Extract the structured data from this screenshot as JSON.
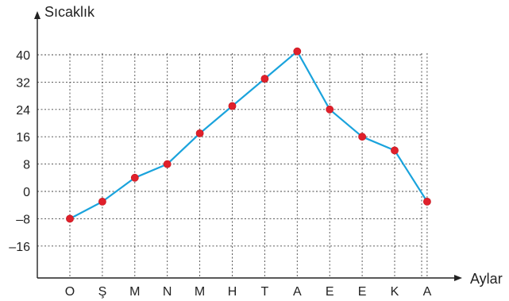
{
  "chart_data": {
    "type": "line",
    "title": "",
    "ylabel": "Sıcaklık",
    "xlabel": "Aylar",
    "categories": [
      "O",
      "Ş",
      "M",
      "N",
      "M",
      "H",
      "T",
      "A",
      "E",
      "E",
      "K",
      "A"
    ],
    "values": [
      -8,
      -3,
      4,
      8,
      17,
      25,
      33,
      41,
      24,
      16,
      12,
      -3
    ],
    "ylim": [
      -24,
      48
    ],
    "yticks": [
      "40",
      "32",
      "24",
      "16",
      "8",
      "0",
      "–8",
      "–16"
    ],
    "ytick_values": [
      40,
      32,
      24,
      16,
      8,
      0,
      -8,
      -16
    ],
    "grid": true,
    "colors": {
      "line": "#1aa3dc",
      "point": "#e0202b",
      "axis": "#222222"
    }
  }
}
